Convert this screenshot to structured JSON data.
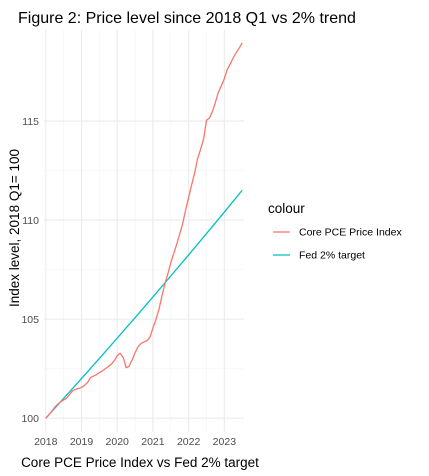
{
  "chart_data": {
    "type": "line",
    "title": "Figure 2: Price level since 2018 Q1 vs 2% trend",
    "xlabel": "Core PCE Price Index vs Fed 2%  target",
    "ylabel": "Index level, 2018 Q1= 100",
    "x_ticks": [
      "2018",
      "2019",
      "2020",
      "2021",
      "2022",
      "2023"
    ],
    "y_ticks": [
      "100",
      "105",
      "110",
      "115"
    ],
    "xlim": [
      2017.95,
      2023.55
    ],
    "ylim": [
      99.3,
      119.6
    ],
    "grid": true,
    "legend": {
      "title": "colour",
      "position": "right",
      "items": [
        {
          "label": "Core PCE Price Index",
          "color": "#F8766D"
        },
        {
          "label": "Fed 2% target",
          "color": "#00BFC4"
        }
      ]
    },
    "series": [
      {
        "name": "Core PCE Price Index",
        "color": "#F8766D",
        "x": [
          2018.0,
          2018.08,
          2018.17,
          2018.25,
          2018.33,
          2018.42,
          2018.5,
          2018.58,
          2018.67,
          2018.75,
          2018.83,
          2018.92,
          2019.0,
          2019.08,
          2019.17,
          2019.25,
          2019.33,
          2019.42,
          2019.5,
          2019.58,
          2019.67,
          2019.75,
          2019.83,
          2019.92,
          2020.0,
          2020.08,
          2020.17,
          2020.25,
          2020.33,
          2020.42,
          2020.5,
          2020.58,
          2020.67,
          2020.75,
          2020.83,
          2020.92,
          2021.0,
          2021.08,
          2021.17,
          2021.25,
          2021.33,
          2021.42,
          2021.5,
          2021.58,
          2021.67,
          2021.75,
          2021.83,
          2021.92,
          2022.0,
          2022.08,
          2022.17,
          2022.25,
          2022.33,
          2022.42,
          2022.5,
          2022.58,
          2022.67,
          2022.75,
          2022.83,
          2022.92,
          2023.0,
          2023.08,
          2023.17,
          2023.25,
          2023.33,
          2023.42,
          2023.5
        ],
        "values": [
          100.0,
          100.15,
          100.35,
          100.55,
          100.7,
          100.82,
          100.92,
          101.0,
          101.2,
          101.38,
          101.45,
          101.5,
          101.55,
          101.65,
          101.8,
          102.05,
          102.12,
          102.2,
          102.3,
          102.38,
          102.5,
          102.6,
          102.72,
          102.9,
          103.15,
          103.28,
          103.05,
          102.55,
          102.62,
          102.95,
          103.3,
          103.6,
          103.78,
          103.85,
          103.9,
          104.1,
          104.55,
          104.95,
          105.5,
          106.15,
          106.75,
          107.3,
          107.85,
          108.3,
          108.8,
          109.3,
          109.8,
          110.55,
          111.15,
          111.75,
          112.4,
          113.1,
          113.55,
          114.1,
          115.05,
          115.15,
          115.5,
          115.95,
          116.45,
          116.8,
          117.15,
          117.6,
          117.9,
          118.2,
          118.45,
          118.7,
          118.95
        ]
      },
      {
        "name": "Fed 2% target",
        "color": "#00BFC4",
        "x": [
          2018.0,
          2018.5,
          2019.0,
          2019.5,
          2020.0,
          2020.5,
          2021.0,
          2021.5,
          2022.0,
          2022.5,
          2023.0,
          2023.5
        ],
        "values": [
          100.0,
          100.995,
          102.0,
          103.015,
          104.04,
          105.075,
          106.121,
          107.177,
          108.243,
          109.32,
          110.408,
          111.507
        ]
      }
    ]
  }
}
